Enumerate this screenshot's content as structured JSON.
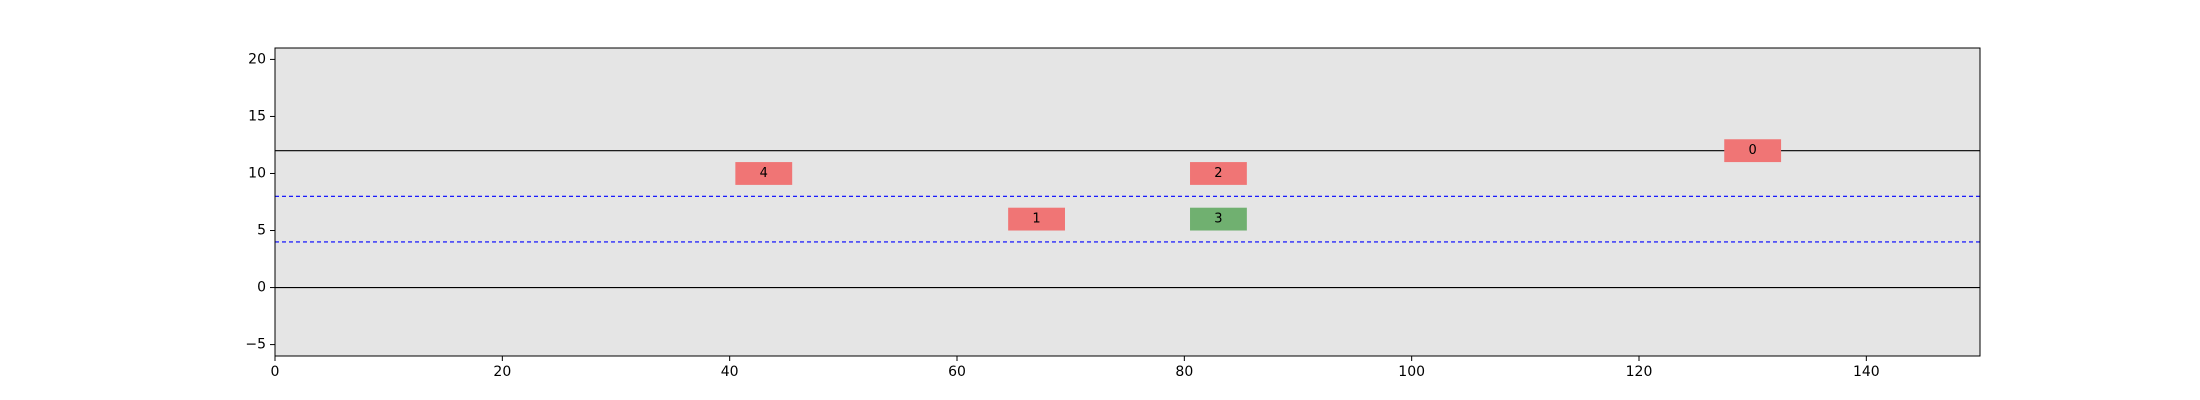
{
  "chart_data": {
    "type": "scatter",
    "title": "",
    "xlabel": "",
    "ylabel": "",
    "xlim": [
      0,
      150
    ],
    "ylim": [
      -6,
      21
    ],
    "x_ticks": [
      0,
      20,
      40,
      60,
      80,
      100,
      120,
      140
    ],
    "y_ticks": [
      -5,
      0,
      5,
      10,
      15,
      20
    ],
    "x_tick_labels": [
      "0",
      "20",
      "40",
      "60",
      "80",
      "100",
      "120",
      "140"
    ],
    "y_tick_labels": [
      "−5",
      "0",
      "5",
      "10",
      "15",
      "20"
    ],
    "background_color": "#e5e5e5",
    "boundary_lines": [
      {
        "y": 0,
        "style": "solid",
        "color": "#000000"
      },
      {
        "y": 12,
        "style": "solid",
        "color": "#000000"
      }
    ],
    "lane_lines": [
      {
        "y": 4,
        "style": "dashed",
        "color": "#0000ff"
      },
      {
        "y": 8,
        "style": "dashed",
        "color": "#0000ff"
      }
    ],
    "vehicle_length": 5,
    "vehicle_width": 2,
    "vehicles": [
      {
        "label": "0",
        "x": 130,
        "y": 12,
        "color": "#f07575"
      },
      {
        "label": "1",
        "x": 67,
        "y": 6,
        "color": "#f07575"
      },
      {
        "label": "2",
        "x": 83,
        "y": 10,
        "color": "#f07575"
      },
      {
        "label": "3",
        "x": 83,
        "y": 6,
        "color": "#70b070"
      },
      {
        "label": "4",
        "x": 43,
        "y": 10,
        "color": "#f07575"
      }
    ]
  }
}
